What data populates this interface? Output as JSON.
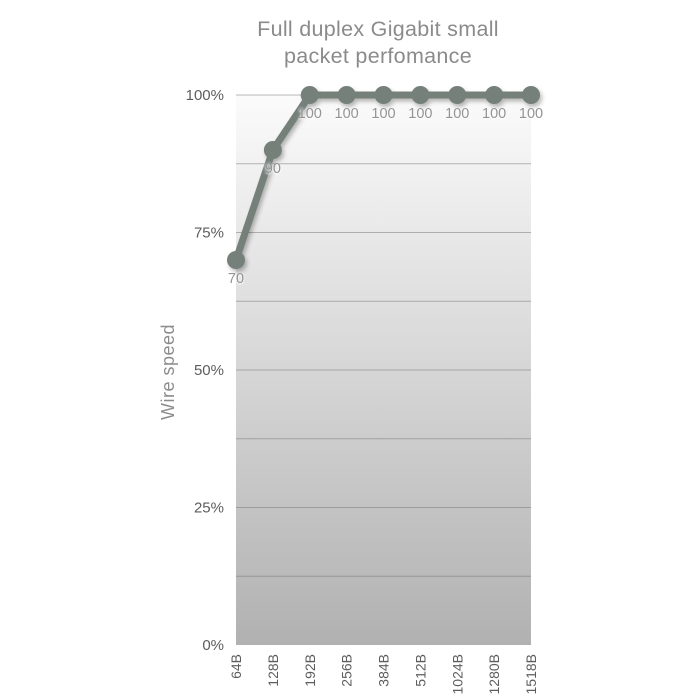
{
  "page": {
    "background": "#ffffff"
  },
  "chart_data": {
    "type": "line",
    "title": "Full duplex Gigabit small packet perfomance",
    "xlabel": "",
    "ylabel": "Wire speed",
    "categories": [
      "64B",
      "128B",
      "192B",
      "256B",
      "384B",
      "512B",
      "1024B",
      "1280B",
      "1518B"
    ],
    "series": [
      {
        "name": "Wire speed %",
        "values": [
          70,
          90,
          100,
          100,
          100,
          100,
          100,
          100,
          100
        ],
        "point_labels": [
          "70",
          "90",
          "100",
          "100",
          "100",
          "100",
          "100",
          "100",
          "100"
        ]
      }
    ],
    "ylim": [
      0,
      100
    ],
    "y_ticks": [
      {
        "label": "0%",
        "value": 0
      },
      {
        "label": "25%",
        "value": 25
      },
      {
        "label": "50%",
        "value": 50
      },
      {
        "label": "75%",
        "value": 75
      },
      {
        "label": "100%",
        "value": 100
      }
    ],
    "grid": "horizontal",
    "grid_interval": 12.5,
    "legend": "none",
    "colors": {
      "line": "#76807a",
      "point": "#76807a",
      "gridline": "#757575",
      "tick_label": "#5d5d5d",
      "data_label": "#949494",
      "title": "#8b8b8b",
      "axis_title": "#8c8c8c",
      "plot_bg_top": "#fbfbfb",
      "plot_bg_bottom": "#b1b1b1"
    }
  }
}
